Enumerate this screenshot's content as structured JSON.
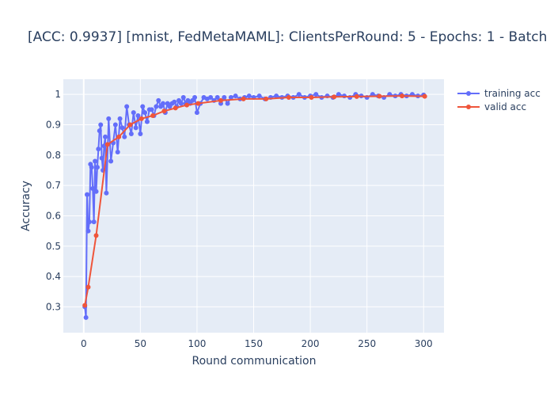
{
  "chart_data": {
    "type": "line",
    "title": "[ACC: 0.9937] [mnist, FedMetaMAML]: ClientsPerRound: 5 - Epochs: 1 - Batch",
    "xlabel": "Round communication",
    "ylabel": "Accuracy",
    "xlim": [
      -18,
      318
    ],
    "ylim": [
      0.215,
      1.05
    ],
    "x_ticks": [
      0,
      50,
      100,
      150,
      200,
      250,
      300
    ],
    "y_ticks": [
      0.3,
      0.4,
      0.5,
      0.6,
      0.7,
      0.8,
      0.9,
      1
    ],
    "x_tick_labels": [
      "0",
      "50",
      "100",
      "150",
      "200",
      "250",
      "300"
    ],
    "y_tick_labels": [
      "0.3",
      "0.4",
      "0.5",
      "0.6",
      "0.7",
      "0.8",
      "0.9",
      "1"
    ],
    "grid": true,
    "legend_position": "top-right",
    "series": [
      {
        "name": "training acc",
        "color": "#636efa",
        "x": [
          1,
          2,
          3,
          4,
          5,
          6,
          7,
          8,
          9,
          10,
          11,
          12,
          13,
          14,
          15,
          16,
          17,
          18,
          19,
          20,
          22,
          24,
          26,
          28,
          30,
          32,
          34,
          36,
          38,
          40,
          42,
          44,
          46,
          48,
          50,
          52,
          54,
          56,
          58,
          60,
          62,
          64,
          66,
          68,
          70,
          72,
          74,
          76,
          78,
          80,
          82,
          84,
          86,
          88,
          90,
          92,
          94,
          96,
          98,
          100,
          103,
          106,
          109,
          112,
          115,
          118,
          121,
          124,
          127,
          130,
          134,
          138,
          142,
          146,
          150,
          155,
          160,
          165,
          170,
          175,
          180,
          185,
          190,
          195,
          200,
          205,
          210,
          215,
          220,
          225,
          230,
          235,
          240,
          245,
          250,
          255,
          260,
          265,
          270,
          275,
          280,
          285,
          290,
          295,
          300
        ],
        "values": [
          0.3,
          0.265,
          0.67,
          0.55,
          0.58,
          0.77,
          0.76,
          0.69,
          0.58,
          0.78,
          0.68,
          0.76,
          0.82,
          0.88,
          0.9,
          0.79,
          0.75,
          0.83,
          0.86,
          0.675,
          0.92,
          0.78,
          0.84,
          0.9,
          0.81,
          0.92,
          0.89,
          0.86,
          0.96,
          0.9,
          0.87,
          0.94,
          0.89,
          0.93,
          0.87,
          0.96,
          0.94,
          0.91,
          0.95,
          0.95,
          0.93,
          0.96,
          0.98,
          0.96,
          0.97,
          0.94,
          0.97,
          0.96,
          0.97,
          0.975,
          0.96,
          0.98,
          0.97,
          0.99,
          0.97,
          0.98,
          0.97,
          0.98,
          0.99,
          0.94,
          0.97,
          0.99,
          0.985,
          0.99,
          0.98,
          0.99,
          0.97,
          0.99,
          0.97,
          0.99,
          0.995,
          0.985,
          0.99,
          0.995,
          0.99,
          0.995,
          0.985,
          0.99,
          0.995,
          0.99,
          0.995,
          0.99,
          1.0,
          0.99,
          0.995,
          1.0,
          0.99,
          0.995,
          0.99,
          1.0,
          0.995,
          0.99,
          1.0,
          0.995,
          0.99,
          1.0,
          0.995,
          0.99,
          1.0,
          0.995,
          1.0,
          0.995,
          1.0,
          0.995,
          0.998
        ]
      },
      {
        "name": "valid acc",
        "color": "#ef553b",
        "x": [
          1,
          4,
          11,
          21,
          31,
          41,
          51,
          61,
          71,
          81,
          91,
          101,
          121,
          141,
          161,
          181,
          201,
          221,
          241,
          261,
          281,
          301
        ],
        "values": [
          0.305,
          0.365,
          0.535,
          0.835,
          0.86,
          0.9,
          0.92,
          0.93,
          0.945,
          0.955,
          0.965,
          0.97,
          0.98,
          0.985,
          0.985,
          0.99,
          0.99,
          0.992,
          0.993,
          0.994,
          0.995,
          0.9937
        ]
      }
    ]
  }
}
